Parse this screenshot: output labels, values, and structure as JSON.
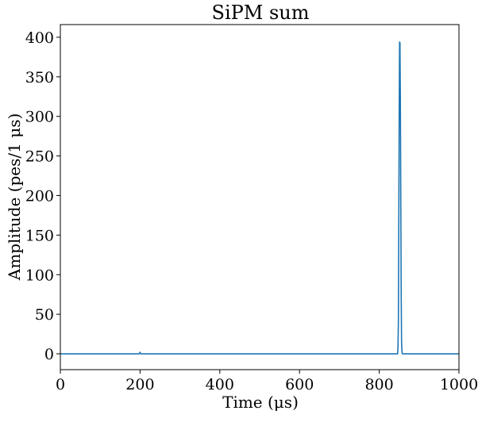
{
  "chart_data": {
    "type": "line",
    "title": "SiPM sum",
    "xlabel": "Time (μs)",
    "ylabel": "Amplitude (pes/1 μs)",
    "xlim": [
      0,
      1000
    ],
    "ylim": [
      -20,
      416
    ],
    "xticks": [
      0,
      200,
      400,
      600,
      800,
      1000
    ],
    "yticks": [
      0,
      50,
      100,
      150,
      200,
      250,
      300,
      350,
      400
    ],
    "grid": false,
    "legend": "none",
    "series": [
      {
        "color": "#1f77b4",
        "x": [
          0,
          198,
          199,
          200,
          201,
          202,
          846,
          847,
          848,
          849,
          850,
          851,
          852,
          853,
          854,
          855,
          856,
          857,
          858,
          860,
          1000
        ],
        "y": [
          0,
          0,
          1,
          2,
          1,
          0,
          0,
          8,
          40,
          160,
          300,
          394,
          393,
          320,
          200,
          80,
          15,
          2,
          0,
          0,
          0
        ]
      }
    ]
  }
}
